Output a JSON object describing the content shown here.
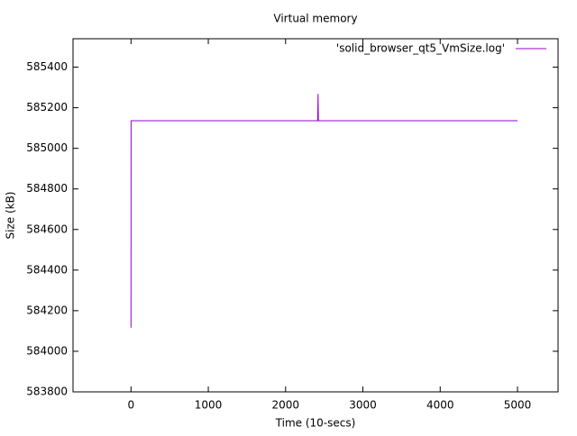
{
  "chart_data": {
    "type": "line",
    "title": "Virtual memory",
    "x_label": "Time (10-secs)",
    "y_label": "Size (kB)",
    "x": [
      0,
      1,
      2415,
      2420,
      2425,
      5000
    ],
    "series": [
      {
        "name": "'solid_browser_qt5_VmSize.log'",
        "color": "#9400d3",
        "values": [
          584116,
          585136,
          585136,
          585268,
          585136,
          585136
        ]
      }
    ],
    "xlim": [
      -750,
      5525
    ],
    "xticks": [
      0,
      1000,
      2000,
      3000,
      4000,
      5000
    ],
    "ylim": [
      583800,
      585540
    ],
    "yticks": [
      583800,
      584000,
      584200,
      584400,
      584600,
      584800,
      585000,
      585200,
      585400
    ],
    "grid": false,
    "legend": "top-right"
  }
}
